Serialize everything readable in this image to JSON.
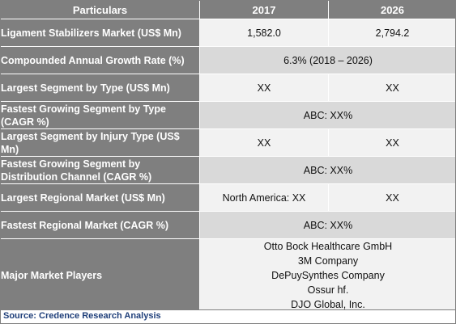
{
  "header": {
    "col_particulars": "Particulars",
    "col_2017": "2017",
    "col_2026": "2026"
  },
  "rows": [
    {
      "label": "Ligament Stabilizers Market (US$ Mn)",
      "v2017": "1,582.0",
      "v2026": "2,794.2"
    },
    {
      "label": "Compounded Annual Growth Rate (%)",
      "merged": "6.3% (2018 – 2026)"
    },
    {
      "label": "Largest Segment by Type (US$ Mn)",
      "v2017": "XX",
      "v2026": "XX"
    },
    {
      "label": "Fastest Growing Segment by Type (CAGR %)",
      "merged": "ABC: XX%"
    },
    {
      "label": "Largest Segment by Injury Type (US$ Mn)",
      "v2017": "XX",
      "v2026": "XX"
    },
    {
      "label": "Fastest Growing Segment by Distribution Channel (CAGR %)",
      "merged": "ABC: XX%"
    },
    {
      "label": "Largest Regional Market (US$ Mn)",
      "v2017": "North America: XX",
      "v2026": "XX"
    },
    {
      "label": "Fastest Regional Market (CAGR %)",
      "merged": "ABC: XX%"
    }
  ],
  "players": {
    "label": "Major Market Players",
    "list": [
      "Otto Bock Healthcare GmbH",
      "3M Company",
      "DePuySynthes Company",
      "Ossur hf.",
      "DJO Global, Inc."
    ]
  },
  "source": "Source: Credence Research Analysis",
  "colors": {
    "header_bg": "#7f7f7f",
    "row_light": "#f2f2f2",
    "row_dark": "#d9d9d9",
    "source_text": "#1f3f7a"
  }
}
